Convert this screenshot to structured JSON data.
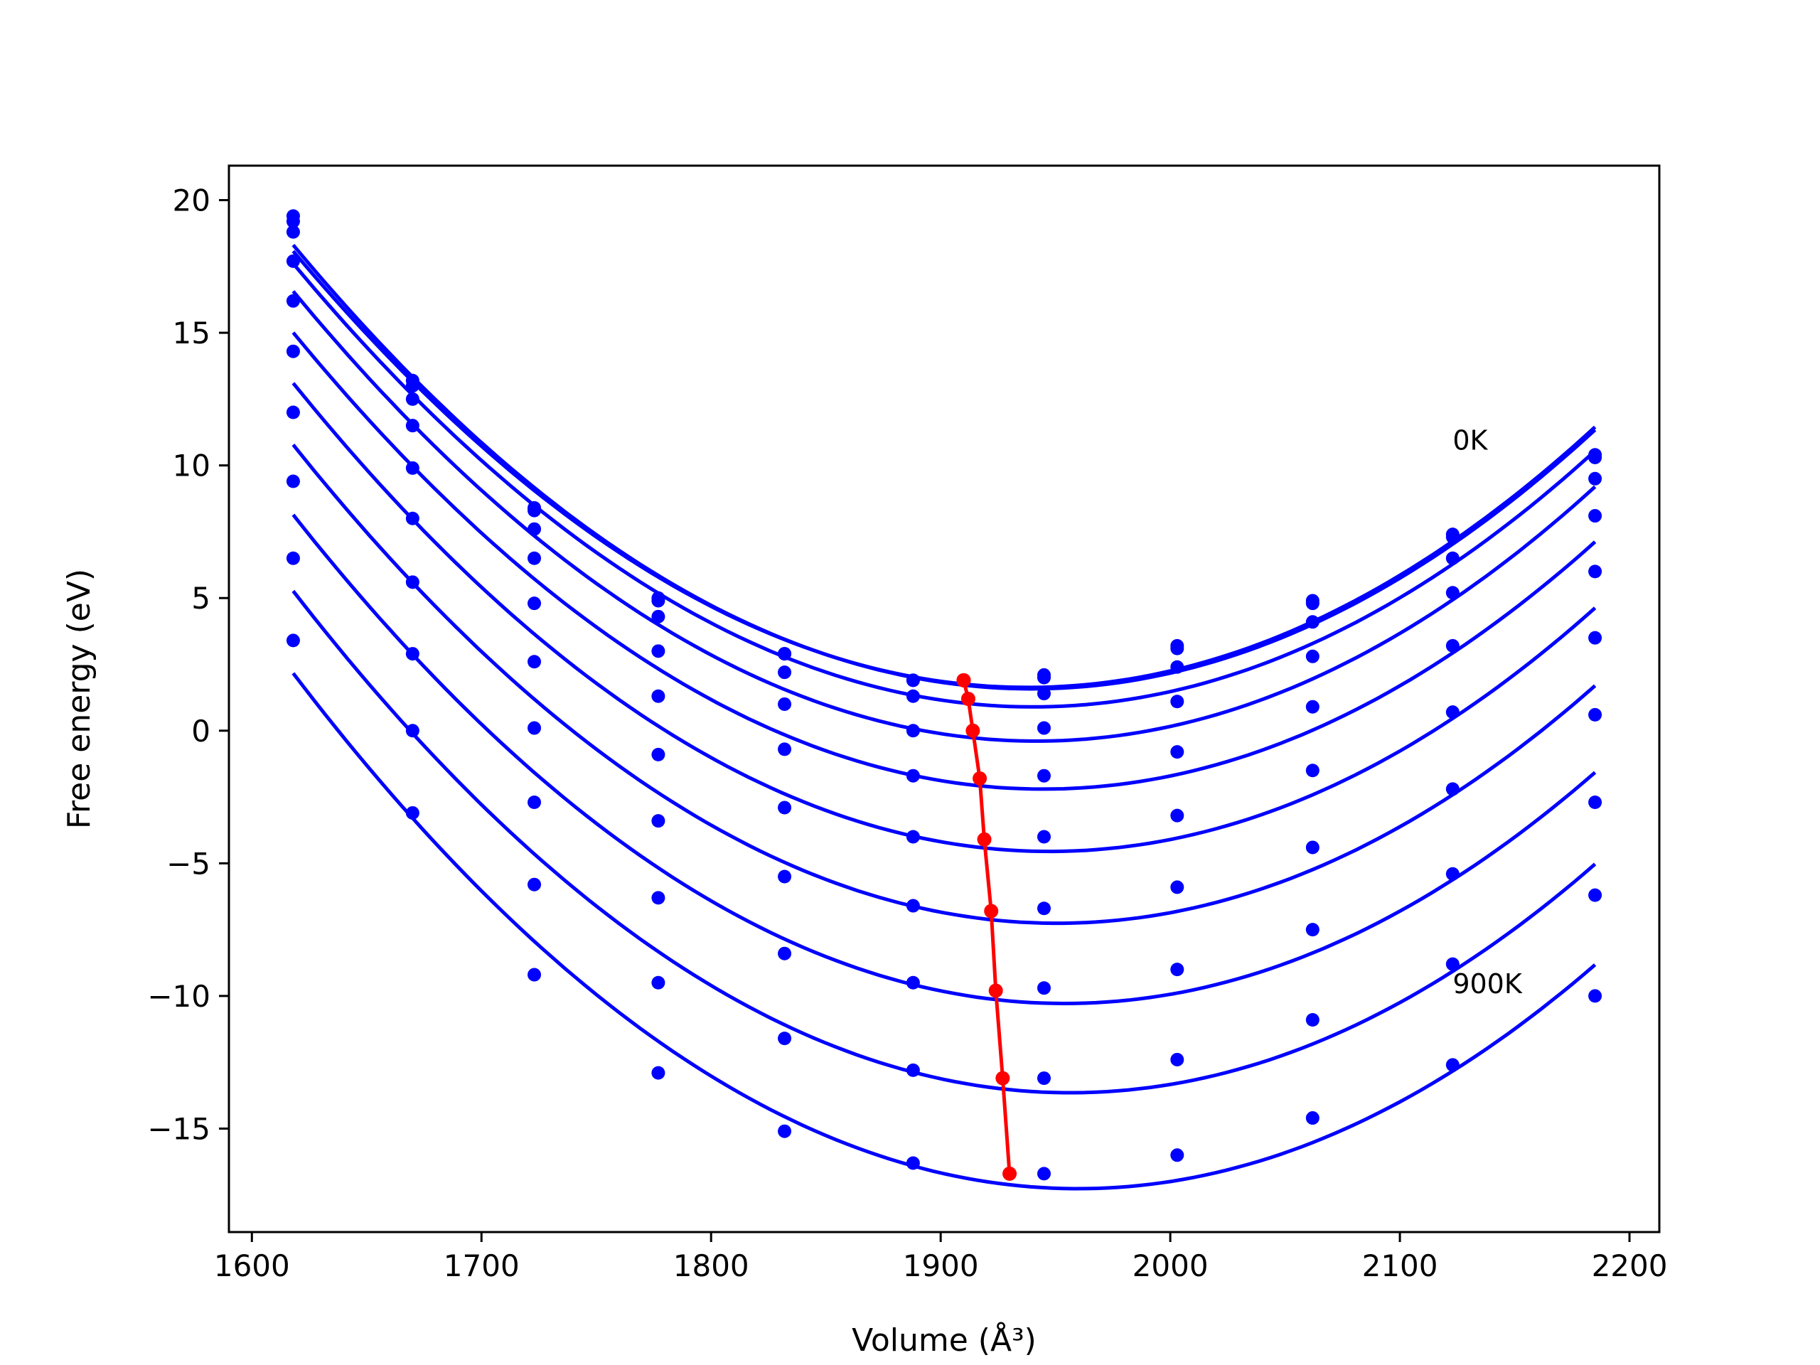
{
  "chart_data": {
    "type": "line",
    "xlabel": "Volume (Å³)",
    "ylabel": "Free energy (eV)",
    "xlim": [
      1590,
      2213
    ],
    "ylim": [
      -18.9,
      21.3
    ],
    "xticks": [
      1600,
      1700,
      1800,
      1900,
      2000,
      2100,
      2200
    ],
    "yticks": [
      -15,
      -10,
      -5,
      0,
      5,
      10,
      15,
      20
    ],
    "grid": false,
    "colors": {
      "curves": "#0000ff",
      "minima": "#ff0000",
      "frame": "#000000"
    },
    "annotations": [
      {
        "text": "0K",
        "x": 2123,
        "y": 10.6
      },
      {
        "text": "900K",
        "x": 2123,
        "y": -9.9
      }
    ],
    "x": [
      1618,
      1670,
      1723,
      1777,
      1832,
      1888,
      1945,
      2003,
      2062,
      2123,
      2185
    ],
    "series": [
      {
        "values": [
          19.4,
          13.2,
          8.4,
          5.0,
          2.9,
          1.9,
          2.0,
          3.1,
          4.8,
          7.3,
          10.3
        ]
      },
      {
        "values": [
          19.2,
          13.0,
          8.3,
          4.9,
          2.9,
          1.9,
          2.1,
          3.2,
          4.9,
          7.4,
          10.4
        ]
      },
      {
        "values": [
          18.8,
          12.5,
          7.6,
          4.3,
          2.2,
          1.3,
          1.4,
          2.4,
          4.1,
          6.5,
          9.5
        ]
      },
      {
        "values": [
          17.7,
          11.5,
          6.5,
          3.0,
          1.0,
          0.0,
          0.1,
          1.1,
          2.8,
          5.2,
          8.1
        ]
      },
      {
        "values": [
          16.2,
          9.9,
          4.8,
          1.3,
          -0.7,
          -1.7,
          -1.7,
          -0.8,
          0.9,
          3.2,
          6.0
        ]
      },
      {
        "values": [
          14.3,
          8.0,
          2.6,
          -0.9,
          -2.9,
          -4.0,
          -4.0,
          -3.2,
          -1.5,
          0.7,
          3.5
        ]
      },
      {
        "values": [
          12.0,
          5.6,
          0.1,
          -3.4,
          -5.5,
          -6.6,
          -6.7,
          -5.9,
          -4.4,
          -2.2,
          0.6
        ]
      },
      {
        "values": [
          9.4,
          2.9,
          -2.7,
          -6.3,
          -8.4,
          -9.5,
          -9.7,
          -9.0,
          -7.5,
          -5.4,
          -2.7
        ]
      },
      {
        "values": [
          6.5,
          0.0,
          -5.8,
          -9.5,
          -11.6,
          -12.8,
          -13.1,
          -12.4,
          -10.9,
          -8.8,
          -6.2
        ]
      },
      {
        "values": [
          3.4,
          -3.1,
          -9.2,
          -12.9,
          -15.1,
          -16.3,
          -16.7,
          -16.0,
          -14.6,
          -12.6,
          -10.0
        ]
      }
    ],
    "minima_line": {
      "x": [
        1910,
        1910,
        1912,
        1914,
        1917,
        1919,
        1922,
        1924,
        1927,
        1930
      ],
      "y": [
        1.9,
        1.9,
        1.2,
        0.0,
        -1.8,
        -4.1,
        -6.8,
        -9.8,
        -13.1,
        -16.7
      ]
    }
  }
}
